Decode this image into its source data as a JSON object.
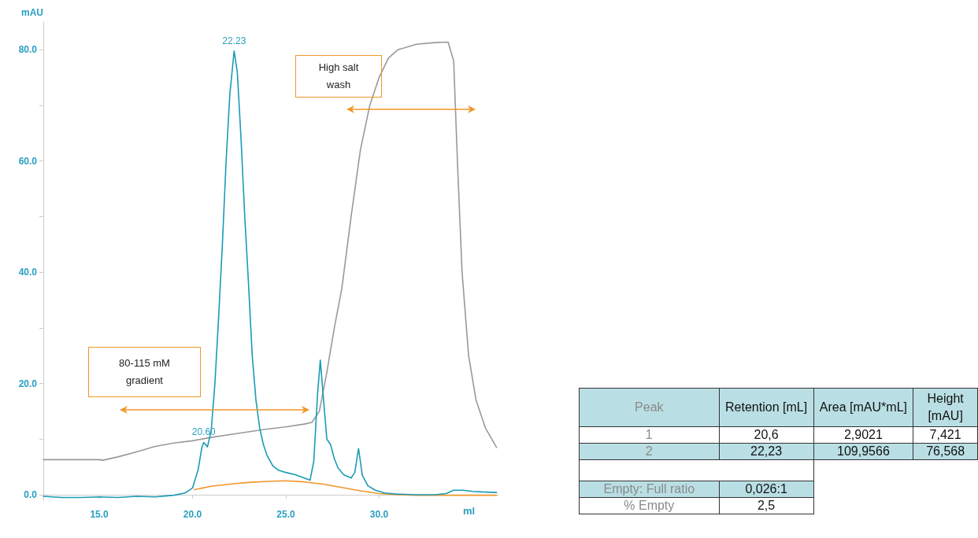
{
  "chart_data": [
    {
      "type": "line",
      "xlabel": "ml",
      "ylabel": "mAU",
      "xlim": [
        12,
        36.4
      ],
      "ylim": [
        -1,
        85
      ],
      "xticks": [
        {
          "value": 15,
          "label": "15.0"
        },
        {
          "value": 20,
          "label": "20.0"
        },
        {
          "value": 25,
          "label": "25.0"
        },
        {
          "value": 30,
          "label": "30.0"
        }
      ],
      "yticks": [
        {
          "value": 0,
          "label": "0.0"
        },
        {
          "value": 10,
          "label": null
        },
        {
          "value": 20,
          "label": "20.0"
        },
        {
          "value": 30,
          "label": null
        },
        {
          "value": 40,
          "label": "40.0"
        },
        {
          "value": 50,
          "label": null
        },
        {
          "value": 60,
          "label": "60.0"
        },
        {
          "value": 70,
          "label": null
        },
        {
          "value": 80,
          "label": "80.0"
        }
      ],
      "grid": false,
      "marker": "none",
      "line_style": "solid",
      "series": [
        {
          "color": "#999999",
          "x": [
            12,
            13,
            14,
            15,
            15.2,
            16,
            17,
            18,
            19,
            20,
            21,
            22,
            23,
            24,
            25,
            26,
            26.4,
            26.8,
            27.2,
            27.6,
            28,
            28.5,
            29,
            29.5,
            30,
            30.5,
            31,
            32,
            33,
            33.7,
            34,
            34.2,
            34.45,
            34.8,
            35.2,
            35.7,
            36.3
          ],
          "values": [
            6.3,
            6.3,
            6.3,
            6.3,
            6.2,
            6.8,
            7.7,
            8.7,
            9.3,
            9.7,
            10.3,
            10.8,
            11.3,
            11.8,
            12.2,
            12.7,
            13,
            15,
            22,
            30,
            37,
            50,
            62,
            70,
            75,
            78.5,
            80,
            81,
            81.3,
            81.4,
            78,
            60,
            40,
            25,
            17,
            12,
            8.5
          ]
        },
        {
          "color": "#f0962a",
          "x": [
            20.1,
            21,
            22,
            23,
            24,
            25,
            26,
            27,
            28,
            29,
            30,
            31,
            32,
            34,
            36.3
          ],
          "values": [
            0.9,
            1.5,
            1.9,
            2.2,
            2.4,
            2.5,
            2.3,
            1.9,
            1.3,
            0.7,
            0.2,
            0,
            -0.1,
            -0.1,
            -0.1
          ]
        },
        {
          "color": "#1a9bb5",
          "x": [
            12,
            13,
            14,
            15,
            16,
            17,
            18,
            19,
            19.6,
            20,
            20.3,
            20.5,
            20.6,
            20.8,
            21,
            21.2,
            21.4,
            21.6,
            21.8,
            22,
            22.23,
            22.4,
            22.6,
            22.8,
            23,
            23.2,
            23.4,
            23.6,
            23.8,
            24,
            24.3,
            24.6,
            25,
            25.5,
            26,
            26.3,
            26.5,
            26.7,
            26.85,
            27,
            27.2,
            27.4,
            27.6,
            27.8,
            28.1,
            28.5,
            28.7,
            28.9,
            29.1,
            29.4,
            29.8,
            30.3,
            31,
            32,
            33,
            33.6,
            34,
            34.5,
            35,
            35.5,
            36.3
          ],
          "values": [
            -0.3,
            -0.5,
            -0.5,
            -0.4,
            -0.5,
            -0.3,
            -0.4,
            -0.1,
            0.3,
            1.2,
            4.5,
            8.5,
            9.4,
            8.6,
            11.5,
            20,
            32,
            45,
            60,
            72,
            79.8,
            76,
            64,
            50,
            38,
            25,
            17,
            12,
            9,
            7,
            5.2,
            4.4,
            4,
            3.6,
            3,
            2.6,
            6,
            18,
            24.2,
            18,
            10,
            9,
            6.5,
            4.8,
            3.6,
            3,
            4,
            8.3,
            3.5,
            1.6,
            0.8,
            0.3,
            0.1,
            0,
            0,
            0.2,
            0.8,
            0.8,
            0.6,
            0.5,
            0.4
          ]
        }
      ],
      "annotations": [
        {
          "text": "22.23",
          "x": 22.23,
          "y": 79.8
        },
        {
          "text": "20.60",
          "x": 20.6,
          "y": 9.4
        },
        "80-115 mM gradient",
        "High salt wash"
      ]
    },
    {
      "type": "other",
      "categories": [
        "Peak",
        "Retention [mL]",
        "Area [mAU*mL]",
        "Height [mAU]"
      ],
      "cell_labels": [
        [
          "1",
          "20,6",
          "2,9021",
          "7,421"
        ],
        [
          "2",
          "22,23",
          "109,9566",
          "76,568"
        ],
        [
          null,
          null
        ],
        [
          "Empty: Full ratio",
          "0,026:1"
        ],
        [
          "% Empty",
          "2,5"
        ]
      ]
    }
  ]
}
